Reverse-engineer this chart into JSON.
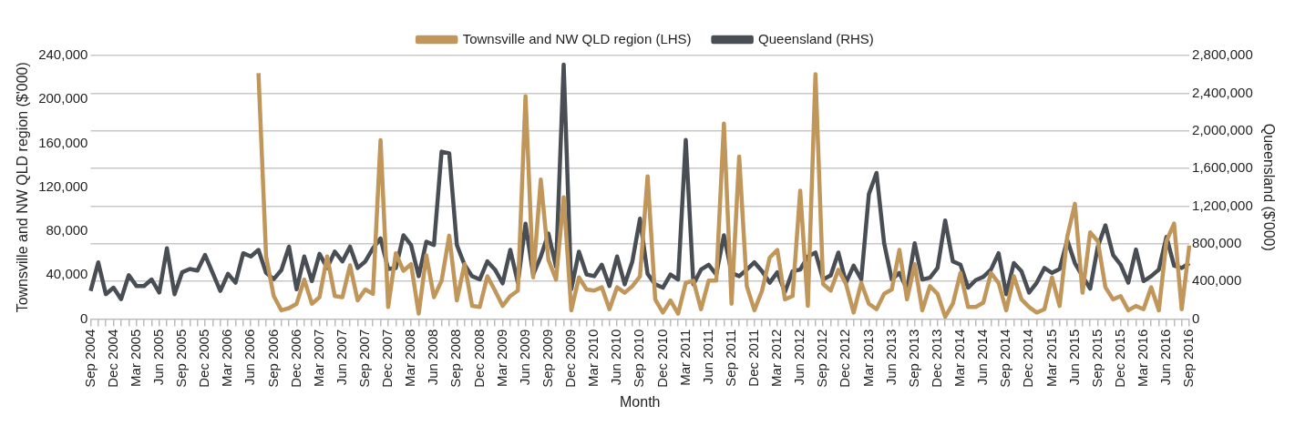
{
  "chart_data": {
    "type": "line",
    "xlabel": "Month",
    "ylabel": "Townsville and NW QLD region ($'000)",
    "y2label": "Queensland ($'000)",
    "legend": "top",
    "grid": "y",
    "line_style": "solid",
    "marker": "none",
    "categories": [
      "Sep 2004",
      null,
      null,
      "Dec 2004",
      null,
      null,
      "Mar 2005",
      null,
      null,
      "Jun 2005",
      null,
      null,
      "Sep 2005",
      null,
      null,
      "Dec 2005",
      null,
      null,
      "Mar 2006",
      null,
      null,
      "Jun 2006",
      null,
      null,
      "Sep 2006",
      null,
      null,
      "Dec 2006",
      null,
      null,
      "Mar 2007",
      null,
      null,
      "Jun 2007",
      null,
      null,
      "Sep 2007",
      null,
      null,
      "Dec 2007",
      null,
      null,
      "Mar 2008",
      null,
      null,
      "Jun 2008",
      null,
      null,
      "Sep 2008",
      null,
      null,
      "Dec 2008",
      null,
      null,
      "Mar 2009",
      null,
      null,
      "Jun 2009",
      null,
      null,
      "Sep 2009",
      null,
      null,
      "Dec 2009",
      null,
      null,
      "Mar 2010",
      null,
      null,
      "Jun 2010",
      null,
      null,
      "Sep 2010",
      null,
      null,
      "Dec 2010",
      null,
      null,
      "Mar 2011",
      null,
      null,
      "Jun 2011",
      null,
      null,
      "Sep 2011",
      null,
      null,
      "Dec 2011",
      null,
      null,
      "Mar 2012",
      null,
      null,
      "Jun 2012",
      null,
      null,
      "Sep 2012",
      null,
      null,
      "Dec 2012",
      null,
      null,
      "Mar 2013",
      null,
      null,
      "Jun 2013",
      null,
      null,
      "Sep 2013",
      null,
      null,
      "Dec 2013",
      null,
      null,
      "Mar 2014",
      null,
      null,
      "Jun 2014",
      null,
      null,
      "Sep 2014",
      null,
      null,
      "Dec 2014",
      null,
      null,
      "Mar 2015",
      null,
      null,
      "Jun 2015",
      null,
      null,
      "Sep 2015",
      null,
      null,
      "Dec 2015",
      null,
      null,
      "Mar 2016",
      null,
      null,
      "Jun 2016",
      null,
      null,
      "Sep 2016"
    ],
    "ylim": [
      0,
      240000
    ],
    "yticks": [
      {
        "value": 0,
        "label": "0"
      },
      {
        "value": 40000,
        "label": "40,000"
      },
      {
        "value": 80000,
        "label": "80,000"
      },
      {
        "value": 120000,
        "label": "120,000"
      },
      {
        "value": 160000,
        "label": "160,000"
      },
      {
        "value": 200000,
        "label": "200,000"
      },
      {
        "value": 240000,
        "label": "240,000"
      }
    ],
    "y2lim": [
      0,
      2800000
    ],
    "y2ticks": [
      {
        "value": 0,
        "label": "0"
      },
      {
        "value": 400000,
        "label": "400,000"
      },
      {
        "value": 800000,
        "label": "800,000"
      },
      {
        "value": 1200000,
        "label": "1,200,000"
      },
      {
        "value": 1600000,
        "label": "1,600,000"
      },
      {
        "value": 2000000,
        "label": "2,000,000"
      },
      {
        "value": 2400000,
        "label": "2,400,000"
      },
      {
        "value": 2800000,
        "label": "2,800,000"
      }
    ],
    "series": [
      {
        "name": "Townsville and NW QLD region (LHS)",
        "color": "#c0965a",
        "values": [
          null,
          null,
          null,
          null,
          null,
          null,
          null,
          null,
          null,
          null,
          null,
          null,
          null,
          null,
          null,
          null,
          null,
          null,
          null,
          null,
          null,
          null,
          224000,
          57000,
          21000,
          8000,
          10000,
          14000,
          36000,
          14000,
          20000,
          57000,
          21000,
          20000,
          49000,
          17000,
          27000,
          23000,
          163000,
          11000,
          60000,
          44000,
          50000,
          5000,
          58000,
          20000,
          35000,
          76000,
          17000,
          50000,
          12000,
          11000,
          39000,
          26000,
          12000,
          21000,
          26000,
          203000,
          38000,
          127000,
          54000,
          36000,
          111000,
          8000,
          38000,
          27000,
          26000,
          29000,
          9000,
          29000,
          24000,
          30000,
          39000,
          130000,
          18000,
          6000,
          17000,
          5000,
          33000,
          35000,
          9000,
          35000,
          35000,
          178000,
          14000,
          148000,
          30000,
          8000,
          26000,
          56000,
          63000,
          18000,
          21000,
          117000,
          12000,
          223000,
          32000,
          26000,
          45000,
          32000,
          6000,
          33000,
          14000,
          9000,
          23000,
          27000,
          63000,
          18000,
          50000,
          8000,
          30000,
          23000,
          2000,
          14000,
          42000,
          11000,
          11000,
          15000,
          42000,
          33000,
          8000,
          39000,
          18000,
          11000,
          6000,
          9000,
          38000,
          12000,
          75000,
          105000,
          24000,
          79000,
          71000,
          29000,
          18000,
          21000,
          8000,
          12000,
          9000,
          29000,
          8000,
          71000,
          87000,
          9000,
          67000
        ]
      },
      {
        "name": "Queensland (RHS)",
        "color": "#494e55",
        "axis": "y2",
        "values": [
          300000,
          603000,
          265000,
          334000,
          212000,
          467000,
          352000,
          352000,
          421000,
          282000,
          752000,
          265000,
          498000,
          533000,
          515000,
          682000,
          491000,
          300000,
          481000,
          387000,
          700000,
          665000,
          735000,
          491000,
          425000,
          520000,
          770000,
          317000,
          665000,
          404000,
          693000,
          543000,
          717000,
          613000,
          770000,
          543000,
          613000,
          752000,
          857000,
          533000,
          543000,
          891000,
          787000,
          456000,
          822000,
          787000,
          1779000,
          1762000,
          787000,
          578000,
          456000,
          421000,
          613000,
          526000,
          380000,
          735000,
          387000,
          1013000,
          474000,
          665000,
          909000,
          554000,
          2703000,
          317000,
          717000,
          474000,
          456000,
          578000,
          352000,
          665000,
          369000,
          613000,
          1066000,
          480000,
          369000,
          334000,
          474000,
          421000,
          1902000,
          369000,
          526000,
          578000,
          474000,
          891000,
          491000,
          456000,
          526000,
          603000,
          508000,
          387000,
          498000,
          289000,
          508000,
          526000,
          665000,
          707000,
          421000,
          465000,
          707000,
          387000,
          568000,
          421000,
          1327000,
          1553000,
          805000,
          421000,
          491000,
          317000,
          805000,
          421000,
          439000,
          543000,
          1048000,
          613000,
          578000,
          334000,
          414000,
          449000,
          526000,
          700000,
          265000,
          595000,
          508000,
          282000,
          387000,
          543000,
          491000,
          533000,
          839000,
          595000,
          456000,
          324000,
          770000,
          996000,
          682000,
          578000,
          387000,
          739000,
          404000,
          456000,
          526000,
          874000,
          568000,
          543000,
          595000
        ]
      }
    ]
  }
}
